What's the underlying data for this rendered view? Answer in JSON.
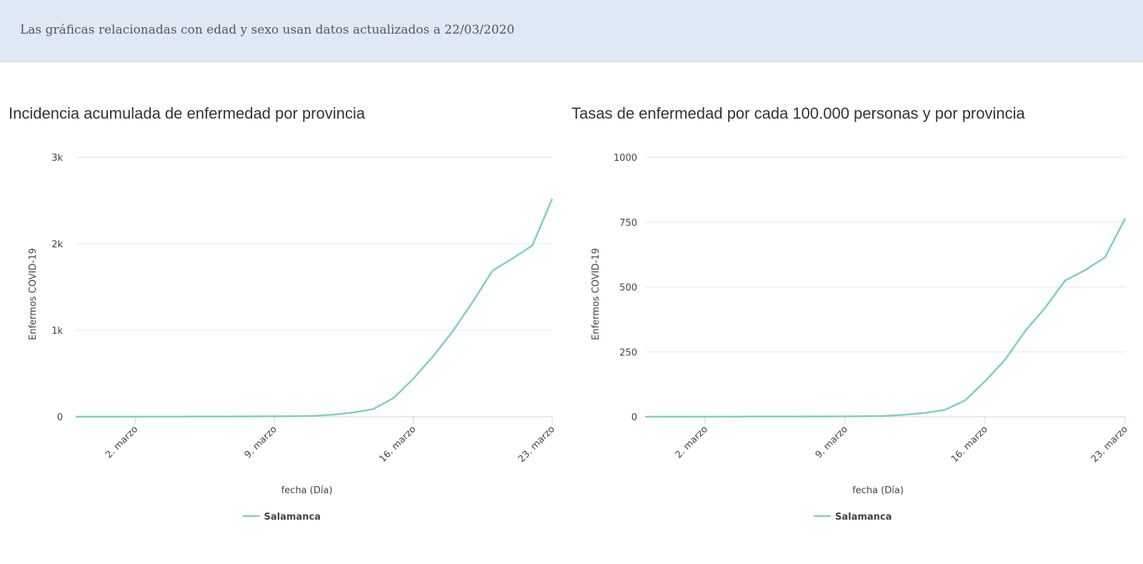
{
  "banner": {
    "text": "Las gráficas relacionadas con edad y sexo usan datos actualizados a 22/03/2020"
  },
  "chart_data": [
    {
      "type": "line",
      "title": "Incidencia acumulada de enfermedad por provincia",
      "xlabel": "fecha (Día)",
      "ylabel": "Enfermos COVID-19",
      "xlim": [
        "2020-02-28",
        "2020-03-23"
      ],
      "ylim": [
        0,
        3000
      ],
      "yticks": [
        0,
        1000,
        2000,
        3000
      ],
      "ytick_labels": [
        "0",
        "1k",
        "2k",
        "3k"
      ],
      "xticks": [
        "2020-03-02",
        "2020-03-09",
        "2020-03-16",
        "2020-03-23"
      ],
      "xtick_labels": [
        "2. marzo",
        "9. marzo",
        "16. marzo",
        "23. marzo"
      ],
      "grid": true,
      "legend": "bottom",
      "series": [
        {
          "name": "Salamanca",
          "color": "#7fd1be",
          "x": [
            "2020-02-28",
            "2020-03-01",
            "2020-03-03",
            "2020-03-05",
            "2020-03-07",
            "2020-03-09",
            "2020-03-10",
            "2020-03-11",
            "2020-03-12",
            "2020-03-13",
            "2020-03-14",
            "2020-03-15",
            "2020-03-16",
            "2020-03-17",
            "2020-03-18",
            "2020-03-19",
            "2020-03-20",
            "2020-03-21",
            "2020-03-22",
            "2020-03-23"
          ],
          "values": [
            0,
            0,
            1,
            2,
            3,
            5,
            6,
            10,
            25,
            50,
            90,
            215,
            440,
            700,
            990,
            1330,
            1690,
            1830,
            1980,
            2520
          ]
        }
      ]
    },
    {
      "type": "line",
      "title": "Tasas de enfermedad por cada 100.000 personas y por provincia",
      "xlabel": "fecha (Día)",
      "ylabel": "Enfermos COVID-19",
      "xlim": [
        "2020-02-28",
        "2020-03-23"
      ],
      "ylim": [
        0,
        1000
      ],
      "yticks": [
        0,
        250,
        500,
        750,
        1000
      ],
      "ytick_labels": [
        "0",
        "250",
        "500",
        "750",
        "1000"
      ],
      "xticks": [
        "2020-03-02",
        "2020-03-09",
        "2020-03-16",
        "2020-03-23"
      ],
      "xtick_labels": [
        "2. marzo",
        "9. marzo",
        "16. marzo",
        "23. marzo"
      ],
      "grid": true,
      "legend": "bottom",
      "series": [
        {
          "name": "Salamanca",
          "color": "#7fd1be",
          "x": [
            "2020-02-28",
            "2020-03-01",
            "2020-03-03",
            "2020-03-05",
            "2020-03-07",
            "2020-03-09",
            "2020-03-10",
            "2020-03-11",
            "2020-03-12",
            "2020-03-13",
            "2020-03-14",
            "2020-03-15",
            "2020-03-16",
            "2020-03-17",
            "2020-03-18",
            "2020-03-19",
            "2020-03-20",
            "2020-03-21",
            "2020-03-22",
            "2020-03-23"
          ],
          "values": [
            0,
            0,
            0.3,
            0.6,
            1,
            1.5,
            2,
            3,
            8,
            15,
            27,
            63,
            137,
            220,
            330,
            420,
            525,
            565,
            615,
            764
          ]
        }
      ]
    }
  ]
}
